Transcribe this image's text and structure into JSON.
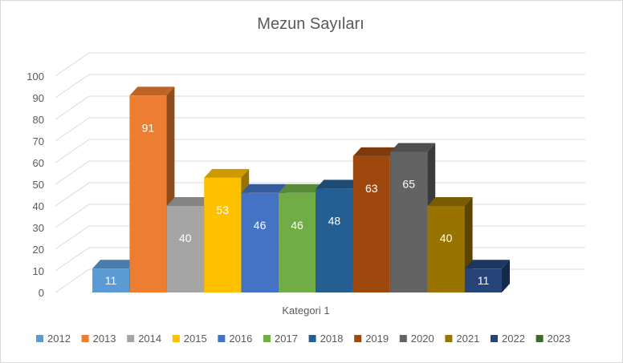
{
  "chart_data": {
    "type": "bar",
    "title": "Mezun Sayıları",
    "categories": [
      "Kategori 1"
    ],
    "xlabel": "Kategori 1",
    "ylabel": "",
    "ylim": [
      0,
      100
    ],
    "yticks": [
      0,
      10,
      20,
      30,
      40,
      50,
      60,
      70,
      80,
      90,
      100
    ],
    "grid": true,
    "legend_position": "bottom",
    "three_d": true,
    "series": [
      {
        "name": "2012",
        "values": [
          11
        ],
        "color": "#5B9BD5"
      },
      {
        "name": "2013",
        "values": [
          91
        ],
        "color": "#ED7D31"
      },
      {
        "name": "2014",
        "values": [
          40
        ],
        "color": "#A5A5A5"
      },
      {
        "name": "2015",
        "values": [
          53
        ],
        "color": "#FFC000"
      },
      {
        "name": "2016",
        "values": [
          46
        ],
        "color": "#4472C4"
      },
      {
        "name": "2017",
        "values": [
          46
        ],
        "color": "#70AD47"
      },
      {
        "name": "2018",
        "values": [
          48
        ],
        "color": "#255E91"
      },
      {
        "name": "2019",
        "values": [
          63
        ],
        "color": "#9E480E"
      },
      {
        "name": "2020",
        "values": [
          65
        ],
        "color": "#636363"
      },
      {
        "name": "2021",
        "values": [
          40
        ],
        "color": "#997300"
      },
      {
        "name": "2022",
        "values": [
          11
        ],
        "color": "#264478"
      },
      {
        "name": "2023",
        "values": [
          null
        ],
        "color": "#43682B"
      }
    ]
  }
}
